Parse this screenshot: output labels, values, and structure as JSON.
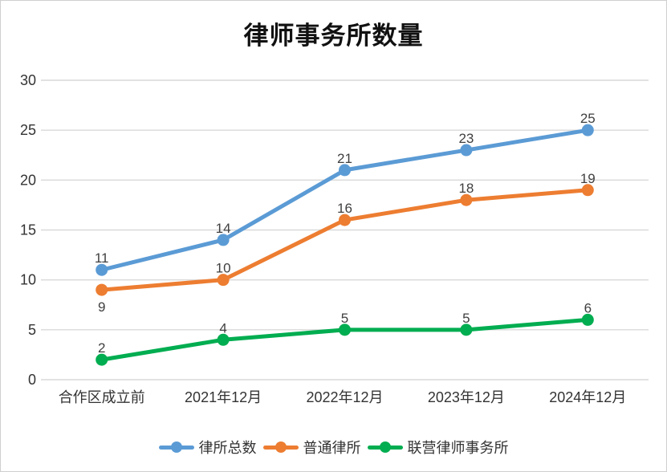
{
  "chart_data": {
    "type": "line",
    "title": "律师事务所数量",
    "categories": [
      "合作区成立前",
      "2021年12月",
      "2022年12月",
      "2023年12月",
      "2024年12月"
    ],
    "series": [
      {
        "name": "律所总数",
        "color": "#5B9BD5",
        "values": [
          11,
          14,
          21,
          23,
          25
        ],
        "labels_below": []
      },
      {
        "name": "普通律所",
        "color": "#ED7D31",
        "values": [
          9,
          10,
          16,
          18,
          19
        ],
        "labels_below": [
          0
        ]
      },
      {
        "name": "联营律师事务所",
        "color": "#00AD50",
        "values": [
          2,
          4,
          5,
          5,
          6
        ],
        "labels_below": []
      }
    ],
    "xlabel": "",
    "ylabel": "",
    "ylim": [
      0,
      30
    ],
    "y_ticks": [
      0,
      5,
      10,
      15,
      20,
      25,
      30
    ],
    "grid": true,
    "legend_position": "bottom",
    "colors": {
      "gridline": "#d9d9d9",
      "axis_label": "#333333",
      "data_label": "#3f3f3f",
      "title": "#111111",
      "border": "#cfcfcf"
    }
  }
}
